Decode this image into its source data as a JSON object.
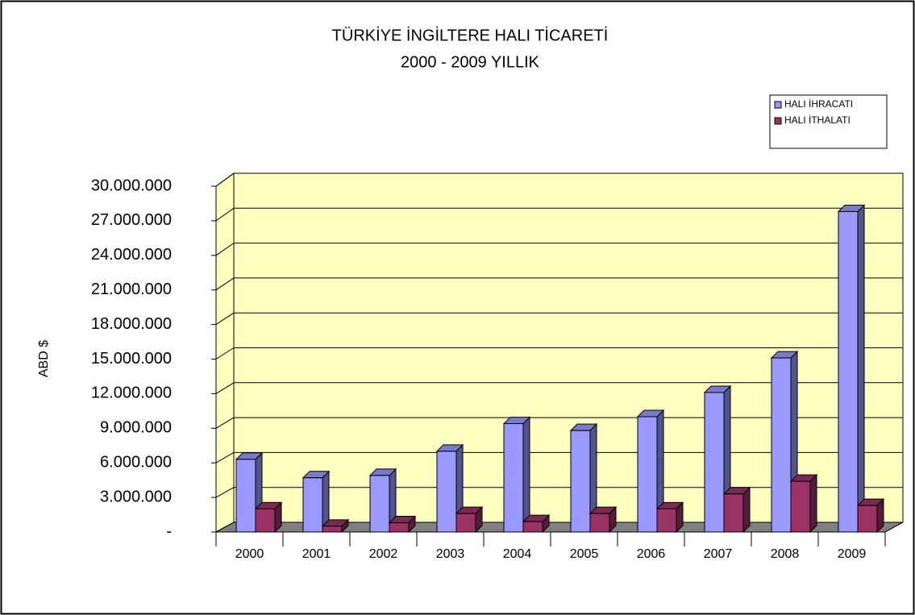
{
  "chart_data": {
    "type": "bar3d",
    "title": "TÜRKİYE  İNGİLTERE HALI TİCARETİ",
    "subtitle": "2000 - 2009 YILLIK",
    "y_label": "ABD $",
    "categories": [
      "2000",
      "2001",
      "2002",
      "2003",
      "2004",
      "2005",
      "2006",
      "2007",
      "2008",
      "2009"
    ],
    "series": [
      {
        "name": "HALI İHRACATI",
        "color": "#9999ff",
        "values": [
          6300000,
          4700000,
          4900000,
          7000000,
          9400000,
          8800000,
          10000000,
          12100000,
          15100000,
          27800000
        ]
      },
      {
        "name": "HALI İTHALATI",
        "color": "#993366",
        "values": [
          2000000,
          500000,
          800000,
          1600000,
          900000,
          1600000,
          2000000,
          3300000,
          4400000,
          2300000
        ]
      }
    ],
    "ylim": [
      0,
      30000000
    ],
    "yticks": [
      {
        "value": 0,
        "label": "-"
      },
      {
        "value": 3000000,
        "label": "3.000.000"
      },
      {
        "value": 6000000,
        "label": "6.000.000"
      },
      {
        "value": 9000000,
        "label": "9.000.000"
      },
      {
        "value": 12000000,
        "label": "12.000.000"
      },
      {
        "value": 15000000,
        "label": "15.000.000"
      },
      {
        "value": 18000000,
        "label": "18.000.000"
      },
      {
        "value": 21000000,
        "label": "21.000.000"
      },
      {
        "value": 24000000,
        "label": "24.000.000"
      },
      {
        "value": 27000000,
        "label": "27.000.000"
      },
      {
        "value": 30000000,
        "label": "30.000.000"
      }
    ],
    "grid": true,
    "legend": "top-right"
  }
}
